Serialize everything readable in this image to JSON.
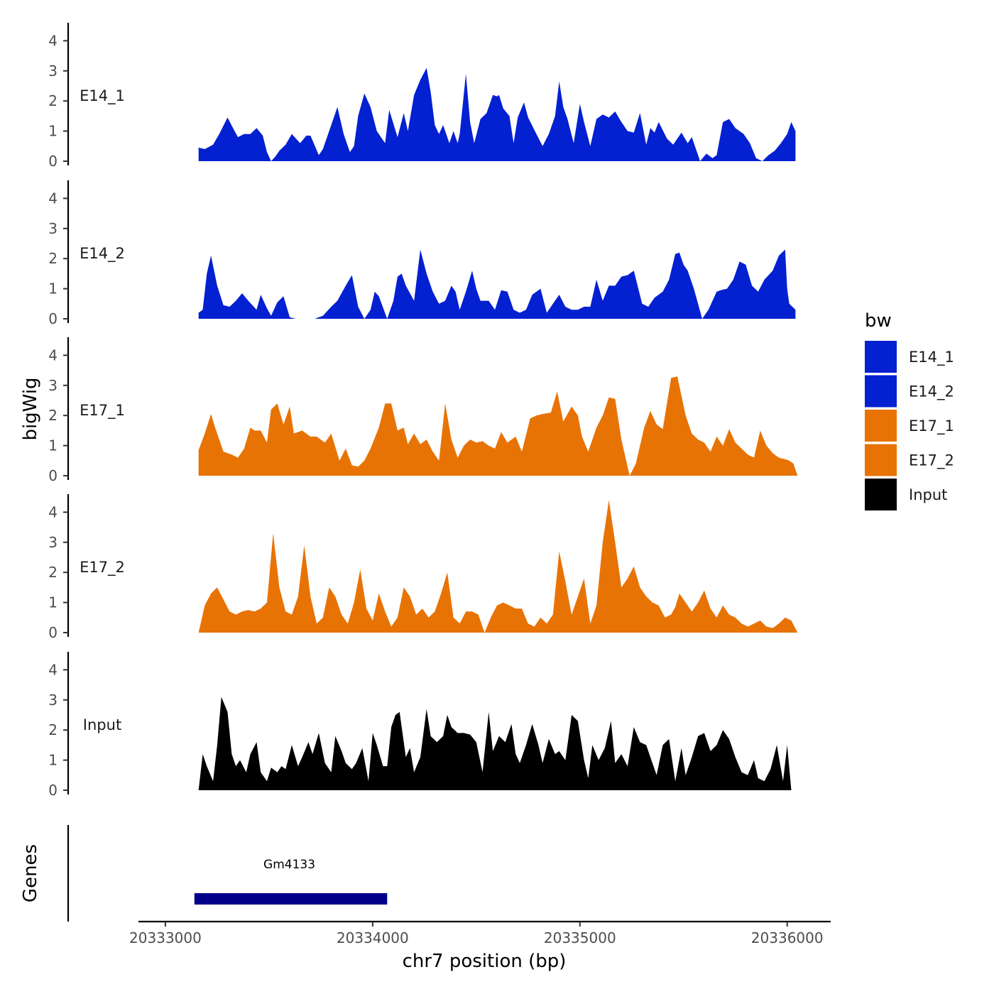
{
  "chart_data": {
    "type": "area",
    "ylabel": "bigWig",
    "xlabel": "chr7 position (bp)",
    "xlim": [
      20332870,
      20336210
    ],
    "ylim": [
      0,
      4.5
    ],
    "yticks": [
      0,
      1,
      2,
      3,
      4
    ],
    "xticks": [
      20333000,
      20334000,
      20335000,
      20336000
    ],
    "xtick_labels": [
      "20333000",
      "20334000",
      "20335000",
      "20336000"
    ],
    "legend": {
      "title": "bw",
      "position": "right",
      "entries": [
        {
          "label": "E14_1",
          "color": "#0320d1"
        },
        {
          "label": "E14_2",
          "color": "#0320d1"
        },
        {
          "label": "E17_1",
          "color": "#e87305"
        },
        {
          "label": "E17_2",
          "color": "#e87305"
        },
        {
          "label": "Input",
          "color": "#000000"
        }
      ]
    },
    "series": [
      {
        "name": "E14_1",
        "color": "#0320d1",
        "x": [
          20333160,
          20333190,
          20333230,
          20333260,
          20333300,
          20333330,
          20333350,
          20333380,
          20333410,
          20333440,
          20333470,
          20333490,
          20333510,
          20333530,
          20333550,
          20333580,
          20333610,
          20333650,
          20333680,
          20333700,
          20333740,
          20333760,
          20333800,
          20333830,
          20333860,
          20333890,
          20333910,
          20333930,
          20333960,
          20333990,
          20334020,
          20334060,
          20334080,
          20334120,
          20334150,
          20334170,
          20334200,
          20334230,
          20334260,
          20334280,
          20334300,
          20334320,
          20334340,
          20334370,
          20334390,
          20334410,
          20334420,
          20334450,
          20334470,
          20334490,
          20334520,
          20334550,
          20334580,
          20334600,
          20334610,
          20334630,
          20334660,
          20334680,
          20334700,
          20334730,
          20334750,
          20334790,
          20334820,
          20334850,
          20334880,
          20334900,
          20334920,
          20334940,
          20334970,
          20335000,
          20335020,
          20335050,
          20335080,
          20335110,
          20335140,
          20335170,
          20335200,
          20335230,
          20335260,
          20335290,
          20335320,
          20335340,
          20335360,
          20335380,
          20335420,
          20335450,
          20335490,
          20335520,
          20335540,
          20335580,
          20335610,
          20335640,
          20335660,
          20335690,
          20335720,
          20335750,
          20335770,
          20335790,
          20335820,
          20335850,
          20335880,
          20335910,
          20335940,
          20335970,
          20336000,
          20336020,
          20336040
        ],
        "values": [
          0.45,
          0.4,
          0.55,
          0.9,
          1.45,
          1.05,
          0.8,
          0.9,
          0.9,
          1.1,
          0.85,
          0.3,
          0.0,
          0.15,
          0.35,
          0.55,
          0.9,
          0.6,
          0.85,
          0.85,
          0.2,
          0.4,
          1.2,
          1.8,
          0.9,
          0.3,
          0.5,
          1.5,
          2.25,
          1.8,
          1.0,
          0.6,
          1.7,
          0.8,
          1.6,
          1.0,
          2.2,
          2.7,
          3.1,
          2.3,
          1.2,
          0.9,
          1.2,
          0.6,
          1.0,
          0.6,
          0.9,
          2.9,
          1.3,
          0.6,
          1.4,
          1.6,
          2.2,
          2.15,
          2.2,
          1.75,
          1.5,
          0.6,
          1.45,
          1.95,
          1.45,
          0.9,
          0.5,
          0.9,
          1.5,
          2.65,
          1.8,
          1.4,
          0.6,
          1.9,
          1.3,
          0.5,
          1.4,
          1.55,
          1.45,
          1.65,
          1.3,
          1.0,
          0.95,
          1.6,
          0.55,
          1.1,
          0.95,
          1.3,
          0.75,
          0.55,
          0.95,
          0.6,
          0.8,
          0.0,
          0.25,
          0.1,
          0.2,
          1.3,
          1.4,
          1.1,
          1.0,
          0.9,
          0.6,
          0.1,
          0.0,
          0.2,
          0.35,
          0.6,
          0.9,
          1.3,
          1.0
        ]
      },
      {
        "name": "E14_2",
        "color": "#0320d1",
        "x": [
          20333160,
          20333180,
          20333200,
          20333220,
          20333250,
          20333280,
          20333310,
          20333340,
          20333370,
          20333400,
          20333440,
          20333460,
          20333490,
          20333510,
          20333540,
          20333570,
          20333600,
          20333630,
          20333680,
          20333720,
          20333760,
          20333800,
          20333830,
          20333870,
          20333900,
          20333930,
          20333960,
          20333990,
          20334010,
          20334030,
          20334070,
          20334100,
          20334120,
          20334140,
          20334160,
          20334200,
          20334230,
          20334260,
          20334290,
          20334320,
          20334350,
          20334380,
          20334400,
          20334420,
          20334450,
          20334480,
          20334500,
          20334520,
          20334560,
          20334590,
          20334620,
          20334650,
          20334680,
          20334710,
          20334740,
          20334770,
          20334810,
          20334840,
          20334870,
          20334900,
          20334930,
          20334960,
          20334990,
          20335020,
          20335050,
          20335080,
          20335110,
          20335140,
          20335170,
          20335200,
          20335230,
          20335260,
          20335300,
          20335330,
          20335360,
          20335400,
          20335430,
          20335460,
          20335480,
          20335500,
          20335520,
          20335550,
          20335590,
          20335620,
          20335660,
          20335680,
          20335710,
          20335740,
          20335770,
          20335800,
          20335830,
          20335860,
          20335890,
          20335930,
          20335960,
          20335990,
          20336000,
          20336010,
          20336040
        ],
        "values": [
          0.2,
          0.3,
          1.5,
          2.1,
          1.1,
          0.45,
          0.4,
          0.6,
          0.85,
          0.6,
          0.3,
          0.8,
          0.35,
          0.1,
          0.55,
          0.75,
          0.05,
          0.0,
          0.0,
          0.0,
          0.1,
          0.4,
          0.6,
          1.1,
          1.45,
          0.4,
          0.0,
          0.3,
          0.9,
          0.75,
          0.0,
          0.6,
          1.4,
          1.5,
          1.1,
          0.6,
          2.3,
          1.5,
          0.9,
          0.5,
          0.6,
          1.1,
          0.9,
          0.3,
          0.9,
          1.6,
          1.0,
          0.6,
          0.6,
          0.3,
          0.95,
          0.9,
          0.3,
          0.2,
          0.3,
          0.8,
          1.0,
          0.2,
          0.5,
          0.8,
          0.4,
          0.3,
          0.3,
          0.4,
          0.4,
          1.3,
          0.6,
          1.1,
          1.1,
          1.4,
          1.45,
          1.6,
          0.5,
          0.4,
          0.7,
          0.9,
          1.3,
          2.15,
          2.2,
          1.8,
          1.6,
          1.0,
          0.0,
          0.3,
          0.9,
          0.95,
          1.0,
          1.3,
          1.9,
          1.8,
          1.1,
          0.9,
          1.3,
          1.6,
          2.1,
          2.3,
          1.0,
          0.5,
          0.3
        ]
      },
      {
        "name": "E17_1",
        "color": "#e87305",
        "x": [
          20333160,
          20333190,
          20333220,
          20333240,
          20333280,
          20333320,
          20333350,
          20333380,
          20333410,
          20333430,
          20333460,
          20333490,
          20333510,
          20333540,
          20333570,
          20333600,
          20333620,
          20333660,
          20333700,
          20333730,
          20333770,
          20333800,
          20333840,
          20333870,
          20333900,
          20333930,
          20333960,
          20333990,
          20334030,
          20334060,
          20334090,
          20334120,
          20334150,
          20334170,
          20334200,
          20334230,
          20334260,
          20334290,
          20334320,
          20334350,
          20334380,
          20334410,
          20334440,
          20334470,
          20334500,
          20334530,
          20334560,
          20334590,
          20334620,
          20334650,
          20334690,
          20334720,
          20334760,
          20334790,
          20334820,
          20334860,
          20334890,
          20334920,
          20334960,
          20334990,
          20335010,
          20335040,
          20335080,
          20335110,
          20335140,
          20335170,
          20335200,
          20335240,
          20335270,
          20335310,
          20335340,
          20335370,
          20335400,
          20335440,
          20335470,
          20335510,
          20335540,
          20335570,
          20335600,
          20335630,
          20335660,
          20335690,
          20335720,
          20335750,
          20335780,
          20335810,
          20335840,
          20335870,
          20335900,
          20335930,
          20335960,
          20335990,
          20336010,
          20336030,
          20336050
        ],
        "values": [
          0.85,
          1.4,
          2.05,
          1.6,
          0.8,
          0.7,
          0.6,
          0.9,
          1.6,
          1.5,
          1.5,
          1.1,
          2.2,
          2.4,
          1.7,
          2.3,
          1.4,
          1.5,
          1.3,
          1.3,
          1.1,
          1.4,
          0.5,
          0.9,
          0.35,
          0.3,
          0.5,
          0.9,
          1.6,
          2.4,
          2.4,
          1.5,
          1.6,
          1.05,
          1.4,
          1.05,
          1.2,
          0.8,
          0.5,
          2.4,
          1.2,
          0.6,
          1.0,
          1.2,
          1.1,
          1.15,
          1.0,
          0.9,
          1.45,
          1.1,
          1.3,
          0.8,
          1.9,
          2.0,
          2.05,
          2.1,
          2.8,
          1.8,
          2.3,
          2.0,
          1.3,
          0.8,
          1.6,
          2.0,
          2.6,
          2.55,
          1.2,
          0.0,
          0.4,
          1.6,
          2.15,
          1.7,
          1.55,
          3.25,
          3.3,
          2.0,
          1.4,
          1.2,
          1.1,
          0.8,
          1.3,
          1.0,
          1.55,
          1.1,
          0.9,
          0.7,
          0.6,
          1.5,
          1.0,
          0.75,
          0.6,
          0.55,
          0.5,
          0.4,
          0.0
        ]
      },
      {
        "name": "E17_2",
        "color": "#e87305",
        "x": [
          20333160,
          20333190,
          20333220,
          20333250,
          20333280,
          20333310,
          20333340,
          20333370,
          20333400,
          20333430,
          20333460,
          20333490,
          20333520,
          20333550,
          20333580,
          20333610,
          20333640,
          20333670,
          20333700,
          20333730,
          20333760,
          20333790,
          20333820,
          20333850,
          20333880,
          20333910,
          20333940,
          20333970,
          20334000,
          20334030,
          20334060,
          20334090,
          20334120,
          20334150,
          20334180,
          20334210,
          20334240,
          20334270,
          20334300,
          20334330,
          20334360,
          20334390,
          20334420,
          20334450,
          20334480,
          20334510,
          20334540,
          20334570,
          20334600,
          20334630,
          20334660,
          20334690,
          20334720,
          20334750,
          20334780,
          20334810,
          20334840,
          20334870,
          20334900,
          20334930,
          20334960,
          20334990,
          20335020,
          20335050,
          20335080,
          20335110,
          20335140,
          20335170,
          20335200,
          20335230,
          20335260,
          20335290,
          20335320,
          20335350,
          20335380,
          20335410,
          20335440,
          20335460,
          20335480,
          20335510,
          20335540,
          20335570,
          20335600,
          20335630,
          20335660,
          20335690,
          20335720,
          20335750,
          20335780,
          20335810,
          20335840,
          20335870,
          20335900,
          20335930,
          20335960,
          20335990,
          20336020,
          20336050
        ],
        "values": [
          0.0,
          0.9,
          1.3,
          1.5,
          1.1,
          0.7,
          0.6,
          0.7,
          0.75,
          0.7,
          0.8,
          1.0,
          3.3,
          1.5,
          0.7,
          0.6,
          1.2,
          2.9,
          1.2,
          0.3,
          0.5,
          1.5,
          1.2,
          0.6,
          0.3,
          1.0,
          2.1,
          0.8,
          0.4,
          1.3,
          0.7,
          0.2,
          0.5,
          1.5,
          1.2,
          0.6,
          0.8,
          0.5,
          0.7,
          1.3,
          2.0,
          0.5,
          0.3,
          0.7,
          0.7,
          0.6,
          0.0,
          0.5,
          0.9,
          1.0,
          0.9,
          0.8,
          0.8,
          0.3,
          0.2,
          0.5,
          0.3,
          0.6,
          2.7,
          1.7,
          0.6,
          1.2,
          1.8,
          0.3,
          0.9,
          3.0,
          4.4,
          3.0,
          1.5,
          1.8,
          2.2,
          1.5,
          1.2,
          1.0,
          0.9,
          0.5,
          0.6,
          0.85,
          1.3,
          1.0,
          0.7,
          1.0,
          1.4,
          0.8,
          0.5,
          0.9,
          0.6,
          0.5,
          0.3,
          0.2,
          0.3,
          0.4,
          0.2,
          0.15,
          0.3,
          0.5,
          0.4,
          0.0
        ]
      },
      {
        "name": "Input",
        "color": "#000000",
        "x": [
          20333160,
          20333180,
          20333200,
          20333230,
          20333250,
          20333270,
          20333300,
          20333320,
          20333340,
          20333360,
          20333390,
          20333410,
          20333440,
          20333460,
          20333490,
          20333510,
          20333540,
          20333560,
          20333580,
          20333610,
          20333640,
          20333660,
          20333690,
          20333710,
          20333740,
          20333770,
          20333800,
          20333820,
          20333850,
          20333870,
          20333900,
          20333920,
          20333950,
          20333980,
          20334000,
          20334020,
          20334050,
          20334070,
          20334090,
          20334110,
          20334130,
          20334160,
          20334180,
          20334200,
          20334230,
          20334260,
          20334280,
          20334310,
          20334340,
          20334360,
          20334380,
          20334410,
          20334440,
          20334470,
          20334500,
          20334530,
          20334560,
          20334580,
          20334610,
          20334640,
          20334670,
          20334690,
          20334710,
          20334740,
          20334770,
          20334800,
          20334820,
          20334850,
          20334880,
          20334900,
          20334930,
          20334960,
          20334990,
          20335020,
          20335040,
          20335060,
          20335090,
          20335120,
          20335150,
          20335170,
          20335200,
          20335230,
          20335260,
          20335290,
          20335320,
          20335340,
          20335370,
          20335400,
          20335430,
          20335460,
          20335490,
          20335510,
          20335540,
          20335570,
          20335600,
          20335630,
          20335660,
          20335690,
          20335720,
          20335750,
          20335780,
          20335810,
          20335840,
          20335860,
          20335890,
          20335920,
          20335950,
          20335980,
          20336000,
          20336020,
          20336050
        ],
        "values": [
          0.0,
          1.2,
          0.8,
          0.3,
          1.5,
          3.1,
          2.6,
          1.2,
          0.8,
          1.0,
          0.6,
          1.2,
          1.6,
          0.6,
          0.3,
          0.75,
          0.6,
          0.8,
          0.7,
          1.5,
          0.8,
          1.1,
          1.6,
          1.2,
          1.9,
          0.9,
          0.6,
          1.8,
          1.3,
          0.9,
          0.7,
          0.9,
          1.4,
          0.3,
          1.9,
          1.5,
          0.8,
          0.8,
          2.1,
          2.5,
          2.6,
          1.1,
          1.4,
          0.6,
          1.1,
          2.7,
          1.8,
          1.6,
          1.8,
          2.5,
          2.1,
          1.9,
          1.9,
          1.85,
          1.6,
          0.6,
          2.6,
          1.3,
          1.8,
          1.6,
          2.2,
          1.2,
          0.9,
          1.5,
          2.2,
          1.5,
          0.9,
          1.7,
          1.2,
          1.3,
          1.0,
          2.5,
          2.3,
          1.0,
          0.4,
          1.5,
          1.0,
          1.4,
          2.3,
          0.9,
          1.2,
          0.8,
          2.1,
          1.6,
          1.5,
          1.1,
          0.5,
          1.5,
          1.7,
          0.3,
          1.4,
          0.5,
          1.1,
          1.8,
          1.9,
          1.3,
          1.5,
          2.0,
          1.7,
          1.1,
          0.6,
          0.5,
          1.0,
          0.4,
          0.3,
          0.7,
          1.5,
          0.3,
          1.5,
          0.0,
          0.0
        ],
        "fill_last": true
      }
    ],
    "gene_track": {
      "ylabel": "Genes",
      "genes": [
        {
          "name": "Gm4133",
          "start": 20333140,
          "end": 20334070,
          "color": "#00008b"
        }
      ]
    }
  },
  "tracks": [
    {
      "label": "E14_1"
    },
    {
      "label": "E14_2"
    },
    {
      "label": "E17_1"
    },
    {
      "label": "E17_2"
    },
    {
      "label": "Input"
    }
  ]
}
